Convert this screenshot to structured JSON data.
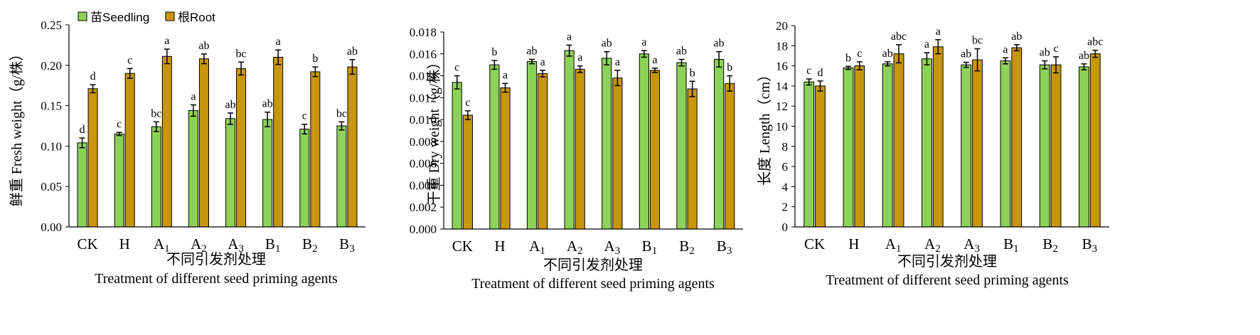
{
  "colors": {
    "seedling": "#8DD258",
    "root": "#C8960A",
    "stroke": "#000000"
  },
  "legend": {
    "seedling": "苗Seedling",
    "root": "根Root"
  },
  "chart_data": [
    {
      "type": "bar",
      "ylabel": "鲜重 Fresh weight（g/株）",
      "xlabel_cn": "不同引发剂处理",
      "xlabel_en": "Treatment of different seed priming agents",
      "categories": [
        {
          "main": "CK",
          "sub": ""
        },
        {
          "main": "H",
          "sub": ""
        },
        {
          "main": "A",
          "sub": "1"
        },
        {
          "main": "A",
          "sub": "2"
        },
        {
          "main": "A",
          "sub": "3"
        },
        {
          "main": "B",
          "sub": "1"
        },
        {
          "main": "B",
          "sub": "2"
        },
        {
          "main": "B",
          "sub": "3"
        }
      ],
      "ylim": [
        0,
        0.25
      ],
      "yticks": [
        "0.00",
        "0.05",
        "0.10",
        "0.15",
        "0.20",
        "0.25"
      ],
      "series": [
        {
          "name": "苗Seedling",
          "values": [
            0.104,
            0.115,
            0.124,
            0.144,
            0.134,
            0.133,
            0.121,
            0.125
          ],
          "errors": [
            0.006,
            0.002,
            0.006,
            0.007,
            0.007,
            0.009,
            0.006,
            0.005
          ],
          "labels": [
            "d",
            "c",
            "bc",
            "a",
            "ab",
            "ab",
            "c",
            "bc"
          ]
        },
        {
          "name": "根Root",
          "values": [
            0.171,
            0.19,
            0.211,
            0.208,
            0.196,
            0.21,
            0.192,
            0.198
          ],
          "errors": [
            0.005,
            0.006,
            0.009,
            0.006,
            0.008,
            0.009,
            0.006,
            0.009
          ],
          "labels": [
            "d",
            "c",
            "a",
            "ab",
            "bc",
            "a",
            "b",
            "ab"
          ]
        }
      ]
    },
    {
      "type": "bar",
      "ylabel": "干重 Dry weight（g/株）",
      "xlabel_cn": "不同引发剂处理",
      "xlabel_en": "Treatment of different seed priming agents",
      "categories": [
        {
          "main": "CK",
          "sub": ""
        },
        {
          "main": "H",
          "sub": ""
        },
        {
          "main": "A",
          "sub": "1"
        },
        {
          "main": "A",
          "sub": "2"
        },
        {
          "main": "A",
          "sub": "3"
        },
        {
          "main": "B",
          "sub": "1"
        },
        {
          "main": "B",
          "sub": "2"
        },
        {
          "main": "B",
          "sub": "3"
        }
      ],
      "ylim": [
        0,
        0.018
      ],
      "yticks": [
        "0.000",
        "0.002",
        "0.004",
        "0.006",
        "0.008",
        "0.010",
        "0.012",
        "0.014",
        "0.016",
        "0.018"
      ],
      "series": [
        {
          "name": "苗Seedling",
          "values": [
            0.0134,
            0.015,
            0.0153,
            0.0163,
            0.0156,
            0.016,
            0.0152,
            0.0155
          ],
          "errors": [
            0.0006,
            0.0004,
            0.0002,
            0.0005,
            0.0006,
            0.0003,
            0.0003,
            0.0007
          ],
          "labels": [
            "c",
            "b",
            "ab",
            "a",
            "ab",
            "a",
            "ab",
            "ab"
          ]
        },
        {
          "name": "根Root",
          "values": [
            0.0104,
            0.0129,
            0.0142,
            0.0146,
            0.0138,
            0.0145,
            0.0128,
            0.0133
          ],
          "errors": [
            0.0004,
            0.0004,
            0.0003,
            0.0003,
            0.0007,
            0.0002,
            0.0007,
            0.0007
          ],
          "labels": [
            "c",
            "a",
            "a",
            "a",
            "a",
            "a",
            "b",
            "b"
          ]
        }
      ]
    },
    {
      "type": "bar",
      "ylabel": "长度 Length（cm）",
      "xlabel_cn": "不同引发剂处理",
      "xlabel_en": "Treatment of different seed priming agents",
      "categories": [
        {
          "main": "CK",
          "sub": ""
        },
        {
          "main": "H",
          "sub": ""
        },
        {
          "main": "A",
          "sub": "1"
        },
        {
          "main": "A",
          "sub": "2"
        },
        {
          "main": "A",
          "sub": "3"
        },
        {
          "main": "B",
          "sub": "1"
        },
        {
          "main": "B",
          "sub": "2"
        },
        {
          "main": "B",
          "sub": "3"
        }
      ],
      "ylim": [
        0,
        20
      ],
      "yticks": [
        "0",
        "2",
        "4",
        "6",
        "8",
        "10",
        "12",
        "14",
        "16",
        "18",
        "20"
      ],
      "series": [
        {
          "name": "苗Seedling",
          "values": [
            14.4,
            15.8,
            16.2,
            16.7,
            16.1,
            16.5,
            16.1,
            15.9
          ],
          "errors": [
            0.3,
            0.15,
            0.2,
            0.6,
            0.25,
            0.3,
            0.4,
            0.3
          ],
          "labels": [
            "c",
            "b",
            "ab",
            "a",
            "ab",
            "a",
            "ab",
            "ab"
          ]
        },
        {
          "name": "根Root",
          "values": [
            14.0,
            16.0,
            17.2,
            17.9,
            16.6,
            17.8,
            16.1,
            17.2
          ],
          "errors": [
            0.5,
            0.4,
            0.9,
            0.7,
            1.1,
            0.3,
            0.8,
            0.35
          ],
          "labels": [
            "d",
            "c",
            "abc",
            "a",
            "bc",
            "ab",
            "c",
            "abc"
          ]
        }
      ]
    }
  ]
}
